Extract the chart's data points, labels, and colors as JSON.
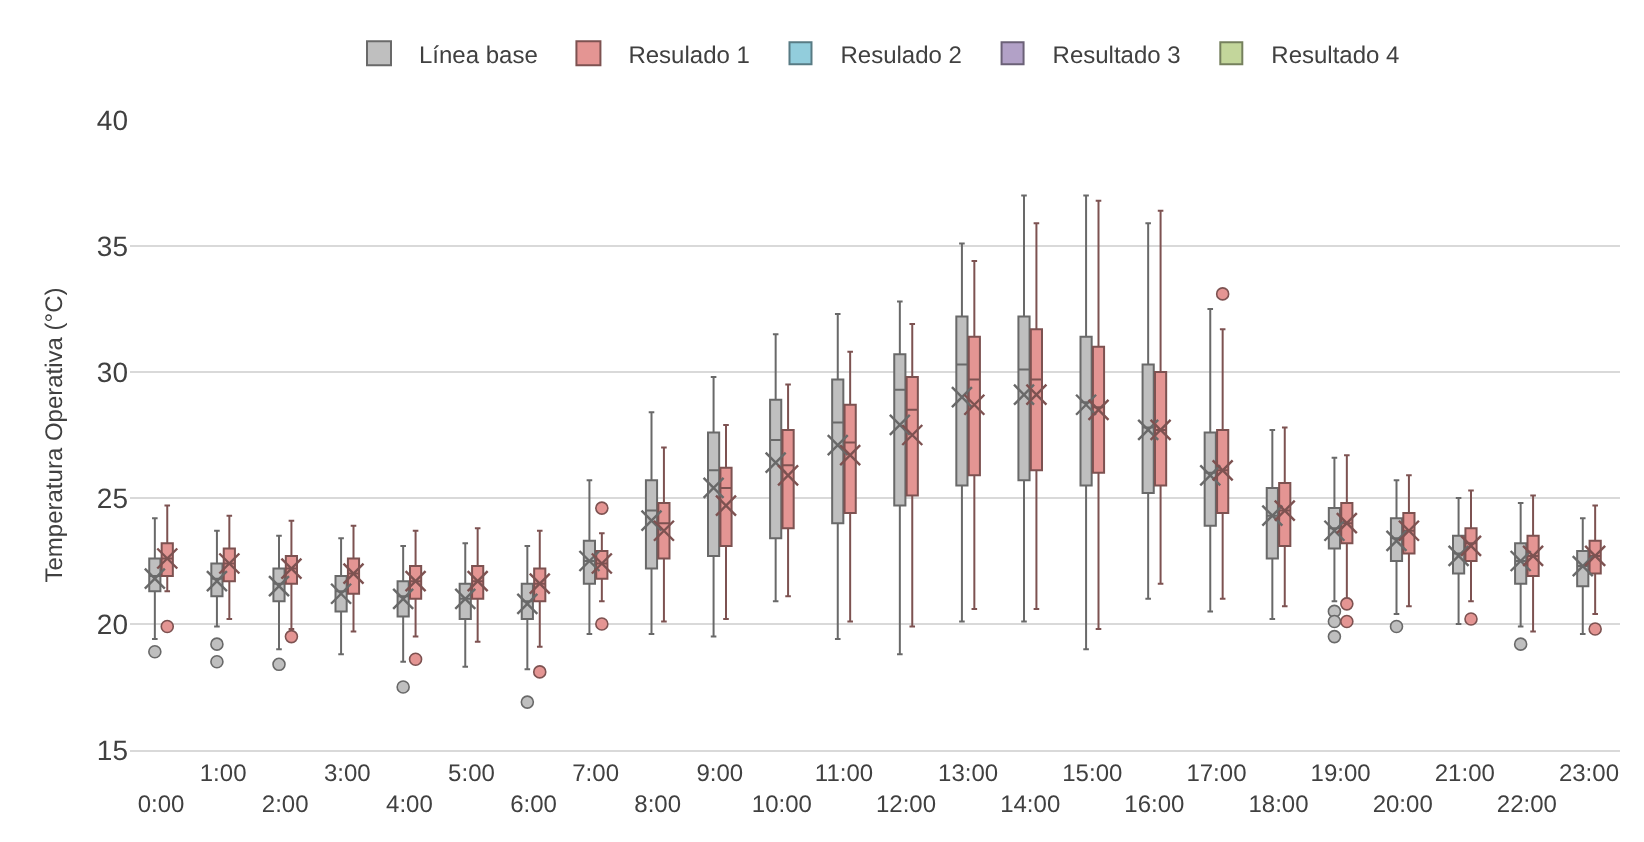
{
  "chart_data": {
    "type": "box",
    "ylabel": "Temperatura Operativa (°C)",
    "categories": [
      "0:00",
      "1:00",
      "2:00",
      "3:00",
      "4:00",
      "5:00",
      "6:00",
      "7:00",
      "8:00",
      "9:00",
      "10:00",
      "11:00",
      "12:00",
      "13:00",
      "14:00",
      "15:00",
      "16:00",
      "17:00",
      "18:00",
      "19:00",
      "20:00",
      "21:00",
      "22:00",
      "23:00"
    ],
    "ylim": [
      15,
      40
    ],
    "yticks": [
      15,
      20,
      25,
      30,
      35,
      40
    ],
    "grid": "y",
    "legend": "top",
    "marker": "cross",
    "series": [
      {
        "name": "Línea base",
        "color": "#bfbfbf",
        "boxes": [
          {
            "low": 19.4,
            "q1": 21.3,
            "median": 21.9,
            "q3": 22.6,
            "high": 24.2,
            "mean": 21.8,
            "outliers": [
              18.9
            ]
          },
          {
            "low": 19.9,
            "q1": 21.1,
            "median": 21.8,
            "q3": 22.4,
            "high": 23.7,
            "mean": 21.7,
            "outliers": [
              19.2,
              18.5
            ]
          },
          {
            "low": 19.0,
            "q1": 20.9,
            "median": 21.6,
            "q3": 22.2,
            "high": 23.5,
            "mean": 21.5,
            "outliers": [
              18.4
            ]
          },
          {
            "low": 18.8,
            "q1": 20.5,
            "median": 21.3,
            "q3": 21.9,
            "high": 23.4,
            "mean": 21.2
          },
          {
            "low": 18.5,
            "q1": 20.3,
            "median": 21.1,
            "q3": 21.7,
            "high": 23.1,
            "mean": 21.0,
            "outliers": [
              17.5
            ]
          },
          {
            "low": 18.3,
            "q1": 20.2,
            "median": 21.0,
            "q3": 21.6,
            "high": 23.2,
            "mean": 21.0
          },
          {
            "low": 18.2,
            "q1": 20.2,
            "median": 20.9,
            "q3": 21.6,
            "high": 23.1,
            "mean": 20.8,
            "outliers": [
              16.9
            ]
          },
          {
            "low": 19.6,
            "q1": 21.6,
            "median": 22.5,
            "q3": 23.3,
            "high": 25.7,
            "mean": 22.5
          },
          {
            "low": 19.6,
            "q1": 22.2,
            "median": 24.5,
            "q3": 25.7,
            "high": 28.4,
            "mean": 24.1
          },
          {
            "low": 19.5,
            "q1": 22.7,
            "median": 26.1,
            "q3": 27.6,
            "high": 29.8,
            "mean": 25.4
          },
          {
            "low": 20.9,
            "q1": 23.4,
            "median": 27.3,
            "q3": 28.9,
            "high": 31.5,
            "mean": 26.4
          },
          {
            "low": 19.4,
            "q1": 24.0,
            "median": 28.0,
            "q3": 29.7,
            "high": 32.3,
            "mean": 27.1
          },
          {
            "low": 18.8,
            "q1": 24.7,
            "median": 29.3,
            "q3": 30.7,
            "high": 32.8,
            "mean": 27.9
          },
          {
            "low": 20.1,
            "q1": 25.5,
            "median": 30.3,
            "q3": 32.2,
            "high": 35.1,
            "mean": 29.0
          },
          {
            "low": 20.1,
            "q1": 25.7,
            "median": 30.1,
            "q3": 32.2,
            "high": 37.0,
            "mean": 29.1
          },
          {
            "low": 19.0,
            "q1": 25.5,
            "median": 28.8,
            "q3": 31.4,
            "high": 37.0,
            "mean": 28.7
          },
          {
            "low": 21.0,
            "q1": 25.2,
            "median": 27.8,
            "q3": 30.3,
            "high": 35.9,
            "mean": 27.7
          },
          {
            "low": 20.5,
            "q1": 23.9,
            "median": 26.0,
            "q3": 27.6,
            "high": 32.5,
            "mean": 25.9
          },
          {
            "low": 20.2,
            "q1": 22.6,
            "median": 24.3,
            "q3": 25.4,
            "high": 27.7,
            "mean": 24.3
          },
          {
            "low": 20.9,
            "q1": 23.0,
            "median": 23.8,
            "q3": 24.6,
            "high": 26.6,
            "mean": 23.7,
            "outliers": [
              20.5,
              20.1,
              19.5
            ]
          },
          {
            "low": 20.4,
            "q1": 22.5,
            "median": 23.4,
            "q3": 24.2,
            "high": 25.7,
            "mean": 23.3,
            "outliers": [
              19.9
            ]
          },
          {
            "low": 20.0,
            "q1": 22.0,
            "median": 22.8,
            "q3": 23.5,
            "high": 25.0,
            "mean": 22.7
          },
          {
            "low": 19.9,
            "q1": 21.6,
            "median": 22.5,
            "q3": 23.2,
            "high": 24.8,
            "mean": 22.5,
            "outliers": [
              19.2
            ]
          },
          {
            "low": 19.6,
            "q1": 21.5,
            "median": 22.3,
            "q3": 22.9,
            "high": 24.2,
            "mean": 22.3
          }
        ]
      },
      {
        "name": "Resulado 1",
        "color": "#e49593",
        "boxes": [
          {
            "low": 21.3,
            "q1": 21.9,
            "median": 22.6,
            "q3": 23.2,
            "high": 24.7,
            "mean": 22.6,
            "outliers": [
              19.9
            ]
          },
          {
            "low": 20.2,
            "q1": 21.7,
            "median": 22.4,
            "q3": 23.0,
            "high": 24.3,
            "mean": 22.4
          },
          {
            "low": 19.8,
            "q1": 21.6,
            "median": 22.2,
            "q3": 22.7,
            "high": 24.1,
            "mean": 22.2,
            "outliers": [
              19.5
            ]
          },
          {
            "low": 19.7,
            "q1": 21.2,
            "median": 22.0,
            "q3": 22.6,
            "high": 23.9,
            "mean": 22.0
          },
          {
            "low": 19.5,
            "q1": 21.0,
            "median": 21.7,
            "q3": 22.3,
            "high": 23.7,
            "mean": 21.7,
            "outliers": [
              18.6
            ]
          },
          {
            "low": 19.3,
            "q1": 21.0,
            "median": 21.7,
            "q3": 22.3,
            "high": 23.8,
            "mean": 21.7
          },
          {
            "low": 19.1,
            "q1": 20.9,
            "median": 21.6,
            "q3": 22.2,
            "high": 23.7,
            "mean": 21.6,
            "outliers": [
              18.1
            ]
          },
          {
            "low": 20.9,
            "q1": 21.8,
            "median": 22.4,
            "q3": 22.9,
            "high": 23.6,
            "mean": 22.4,
            "outliers": [
              24.6,
              20.0
            ]
          },
          {
            "low": 20.1,
            "q1": 22.6,
            "median": 24.0,
            "q3": 24.8,
            "high": 27.0,
            "mean": 23.7
          },
          {
            "low": 20.2,
            "q1": 23.1,
            "median": 25.4,
            "q3": 26.2,
            "high": 27.9,
            "mean": 24.7
          },
          {
            "low": 21.1,
            "q1": 23.8,
            "median": 26.3,
            "q3": 27.7,
            "high": 29.5,
            "mean": 25.9
          },
          {
            "low": 20.1,
            "q1": 24.4,
            "median": 27.2,
            "q3": 28.7,
            "high": 30.8,
            "mean": 26.7
          },
          {
            "low": 19.9,
            "q1": 25.1,
            "median": 28.5,
            "q3": 29.8,
            "high": 31.9,
            "mean": 27.5
          },
          {
            "low": 20.6,
            "q1": 25.9,
            "median": 29.7,
            "q3": 31.4,
            "high": 34.4,
            "mean": 28.7
          },
          {
            "low": 20.6,
            "q1": 26.1,
            "median": 29.7,
            "q3": 31.7,
            "high": 35.9,
            "mean": 29.1
          },
          {
            "low": 19.8,
            "q1": 26.0,
            "median": 28.6,
            "q3": 31.0,
            "high": 36.8,
            "mean": 28.5
          },
          {
            "low": 21.6,
            "q1": 25.5,
            "median": 27.7,
            "q3": 30.0,
            "high": 36.4,
            "mean": 27.7
          },
          {
            "low": 21.0,
            "q1": 24.4,
            "median": 26.1,
            "q3": 27.7,
            "high": 31.7,
            "mean": 26.1,
            "outliers": [
              33.1
            ]
          },
          {
            "low": 20.7,
            "q1": 23.1,
            "median": 24.5,
            "q3": 25.6,
            "high": 27.8,
            "mean": 24.5
          },
          {
            "low": 21.0,
            "q1": 23.2,
            "median": 24.0,
            "q3": 24.8,
            "high": 26.7,
            "mean": 24.0,
            "outliers": [
              20.8,
              20.1
            ]
          },
          {
            "low": 20.7,
            "q1": 22.8,
            "median": 23.7,
            "q3": 24.4,
            "high": 25.9,
            "mean": 23.7
          },
          {
            "low": 20.9,
            "q1": 22.5,
            "median": 23.2,
            "q3": 23.8,
            "high": 25.3,
            "mean": 23.1,
            "outliers": [
              20.2
            ]
          },
          {
            "low": 19.7,
            "q1": 21.9,
            "median": 22.7,
            "q3": 23.5,
            "high": 25.1,
            "mean": 22.7
          },
          {
            "low": 20.4,
            "q1": 22.0,
            "median": 22.7,
            "q3": 23.3,
            "high": 24.7,
            "mean": 22.7,
            "outliers": [
              19.8
            ]
          }
        ]
      },
      {
        "name": "Resulado 2",
        "color": "#92cddc",
        "boxes": [
          null,
          null,
          null,
          null,
          null,
          null,
          null,
          null,
          null,
          null,
          null,
          null,
          null,
          null,
          null,
          null,
          null,
          null,
          null,
          null,
          null,
          null,
          null,
          null
        ]
      },
      {
        "name": "Resultado 3",
        "color": "#b2a1c7",
        "boxes": [
          null,
          null,
          null,
          null,
          null,
          null,
          null,
          null,
          null,
          null,
          null,
          null,
          null,
          null,
          null,
          null,
          null,
          null,
          null,
          null,
          null,
          null,
          null,
          null
        ]
      },
      {
        "name": "Resultado 4",
        "color": "#c3d69b",
        "boxes": [
          null,
          null,
          null,
          null,
          null,
          null,
          null,
          null,
          null,
          null,
          null,
          null,
          null,
          null,
          null,
          null,
          null,
          null,
          null,
          null,
          null,
          null,
          null,
          null
        ]
      }
    ]
  }
}
